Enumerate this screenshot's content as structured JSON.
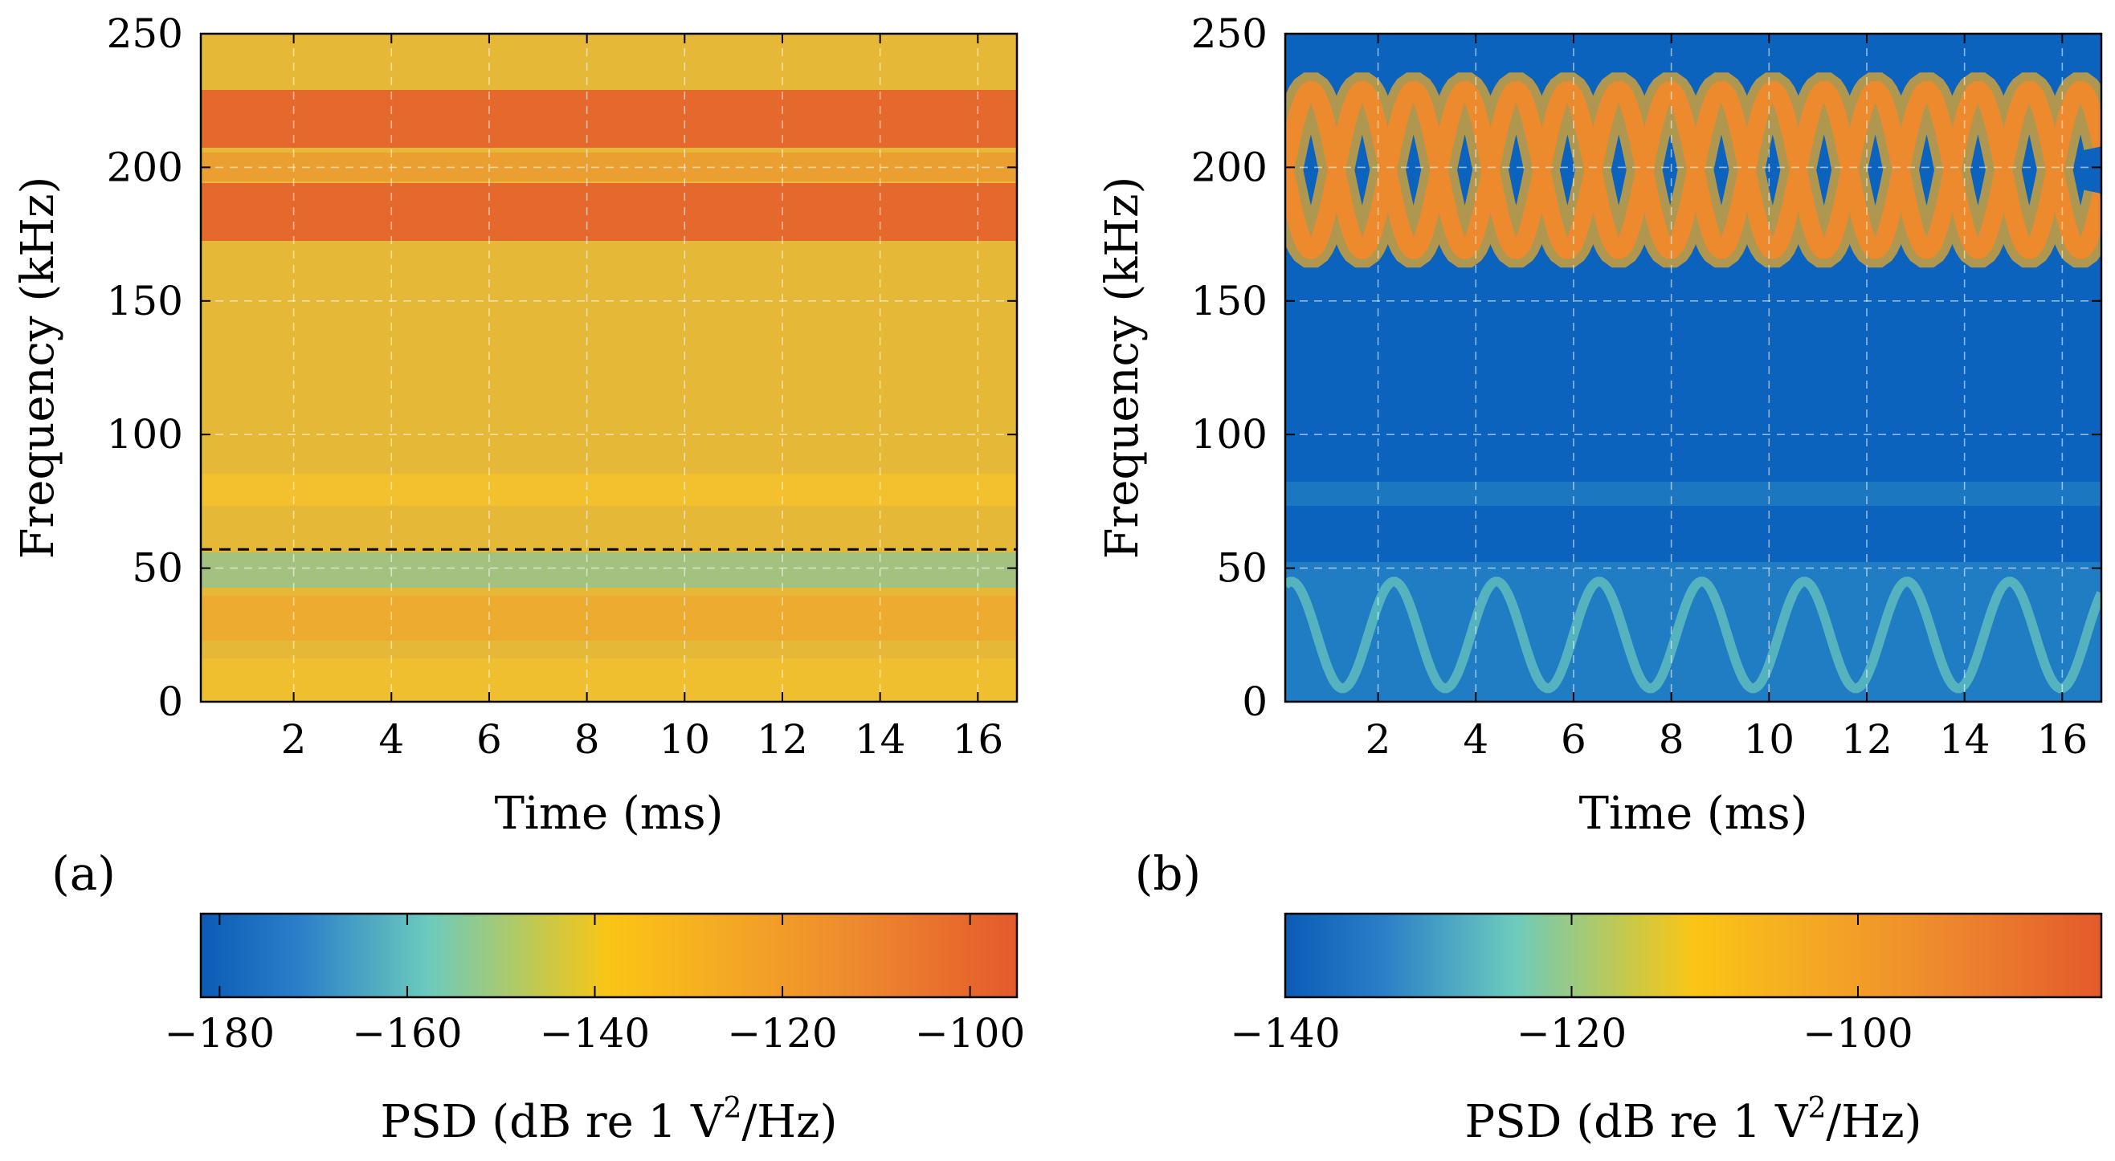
{
  "chart_data": [
    {
      "type": "heatmap",
      "panel_label": "(a)",
      "xlabel": "Time (ms)",
      "ylabel": "Frequency (kHz)",
      "xlim": [
        0.1,
        16.8
      ],
      "ylim": [
        0,
        250
      ],
      "xticks": [
        2,
        4,
        6,
        8,
        10,
        12,
        14,
        16
      ],
      "xtick_labels": [
        "2",
        "4",
        "6",
        "8",
        "10",
        "12",
        "14",
        "16"
      ],
      "yticks": [
        0,
        50,
        100,
        150,
        200,
        250
      ],
      "ytick_labels": [
        "0",
        "50",
        "100",
        "150",
        "200",
        "250"
      ],
      "grid": true,
      "reference_line_kHz": 57,
      "features": [
        {
          "name": "band-upper",
          "center_kHz": 217,
          "halfwidth_kHz": 11,
          "level_dB": -100
        },
        {
          "name": "band-lower",
          "center_kHz": 186,
          "halfwidth_kHz": 11,
          "level_dB": -100
        },
        {
          "name": "band-mid",
          "center_kHz": 200,
          "halfwidth_kHz": 4,
          "level_dB": -120
        },
        {
          "name": "background",
          "level_dB": -140
        }
      ],
      "colorbar": {
        "range": [
          -182,
          -95
        ],
        "ticks": [
          -180,
          -160,
          -140,
          -120,
          -100
        ],
        "tick_labels": [
          "−180",
          "−160",
          "−140",
          "−120",
          "−100"
        ],
        "label_main": "PSD (dB re 1 V",
        "label_sup": "2",
        "label_end": "/Hz)"
      }
    },
    {
      "type": "heatmap",
      "panel_label": "(b)",
      "xlabel": "Time (ms)",
      "ylabel": "Frequency (kHz)",
      "xlim": [
        0.1,
        16.8
      ],
      "ylim": [
        0,
        250
      ],
      "xticks": [
        2,
        4,
        6,
        8,
        10,
        12,
        14,
        16
      ],
      "xtick_labels": [
        "2",
        "4",
        "6",
        "8",
        "10",
        "12",
        "14",
        "16"
      ],
      "yticks": [
        0,
        50,
        100,
        150,
        200,
        250
      ],
      "ytick_labels": [
        "0",
        "50",
        "100",
        "150",
        "200",
        "250"
      ],
      "grid": true,
      "features": [
        {
          "name": "chirp-pattern",
          "center_kHz": 199,
          "amplitude_kHz": 30,
          "period_ms": 2.1,
          "level_dB": -90
        },
        {
          "name": "low-chirp",
          "center_kHz": 25,
          "amplitude_kHz": 20,
          "level_dB": -125
        },
        {
          "name": "background",
          "level_dB": -140
        }
      ],
      "colorbar": {
        "range": [
          -140,
          -83
        ],
        "ticks": [
          -140,
          -120,
          -100
        ],
        "tick_labels": [
          "−140",
          "−120",
          "−100"
        ],
        "label_main": "PSD (dB re 1 V",
        "label_sup": "2",
        "label_end": "/Hz)"
      }
    }
  ]
}
